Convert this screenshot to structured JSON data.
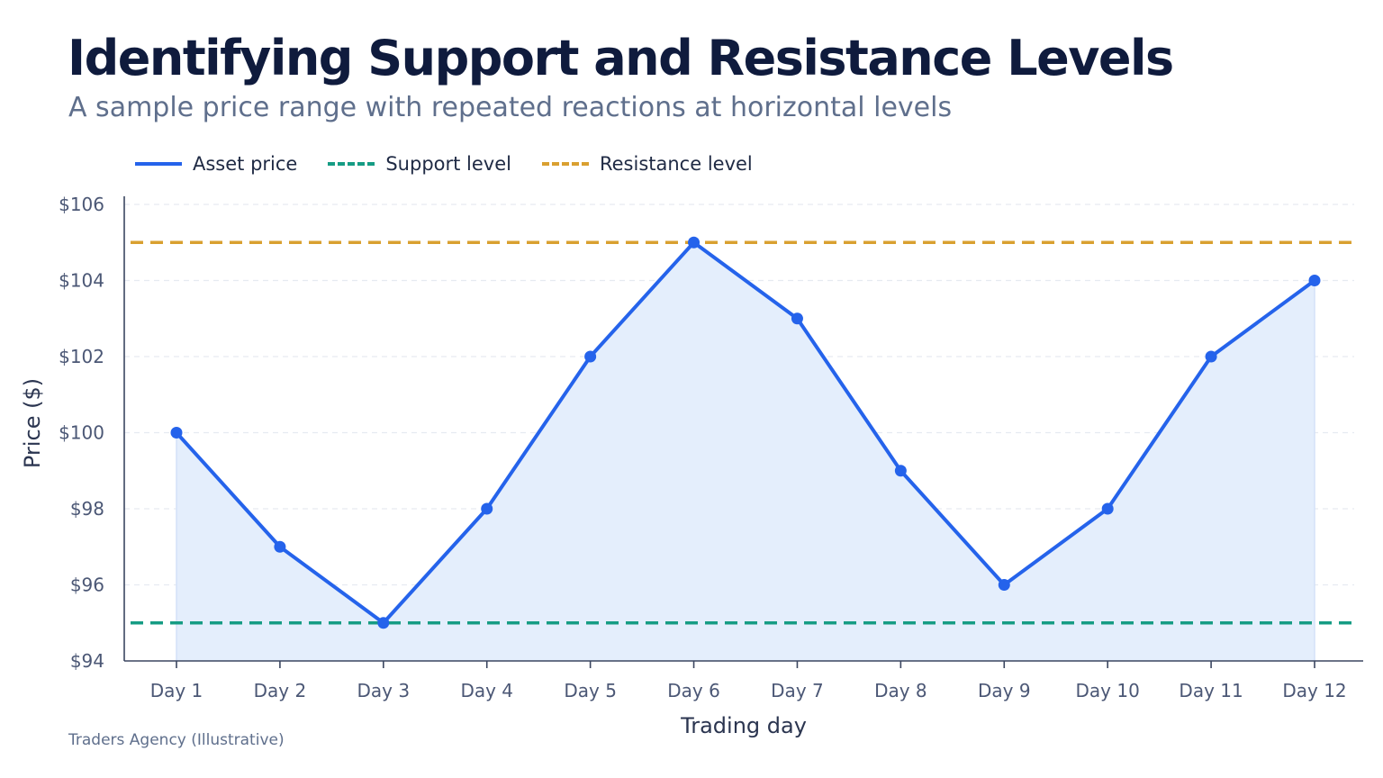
{
  "chart_data": {
    "type": "line",
    "title": "Identifying Support and Resistance Levels",
    "subtitle": "A sample price range with repeated reactions at horizontal levels",
    "xlabel": "Trading day",
    "ylabel": "Price ($)",
    "categories": [
      "Day 1",
      "Day 2",
      "Day 3",
      "Day 4",
      "Day 5",
      "Day 6",
      "Day 7",
      "Day 8",
      "Day 9",
      "Day 10",
      "Day 11",
      "Day 12"
    ],
    "series": [
      {
        "name": "Asset price",
        "values": [
          100,
          97,
          95,
          98,
          102,
          105,
          103,
          99,
          96,
          98,
          102,
          104
        ],
        "color": "#2563eb"
      }
    ],
    "reference_lines": [
      {
        "name": "Support level",
        "value": 95,
        "color": "#169c84",
        "style": "dashed"
      },
      {
        "name": "Resistance level",
        "value": 105,
        "color": "#d9a030",
        "style": "dashed"
      }
    ],
    "ylim": [
      94,
      106
    ],
    "yticks": [
      94,
      96,
      98,
      100,
      102,
      104,
      106
    ],
    "ytick_labels": [
      "$94",
      "$96",
      "$98",
      "$100",
      "$102",
      "$104",
      "$106"
    ],
    "grid": true,
    "legend_position": "top-left",
    "area_fill": "#e4eefc",
    "source": "Traders Agency (Illustrative)"
  }
}
